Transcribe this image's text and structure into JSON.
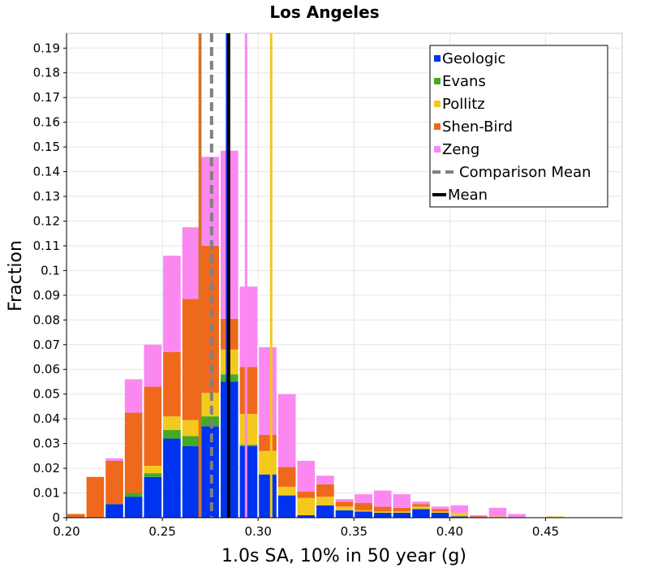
{
  "chart_data": {
    "type": "bar",
    "stacked": true,
    "title": "Los Angeles",
    "xlabel": "1.0s SA, 10% in 50 year (g)",
    "ylabel": "Fraction",
    "xlim": [
      0.2,
      0.49
    ],
    "ylim": [
      0,
      0.196
    ],
    "bin_width": 0.01,
    "grid": true,
    "legend_position": "top-right",
    "x_ticks": [
      "0.20",
      "0.25",
      "0.30",
      "0.35",
      "0.40",
      "0.45"
    ],
    "x_tick_values": [
      0.2,
      0.25,
      0.3,
      0.35,
      0.4,
      0.45
    ],
    "y_ticks": [
      "0",
      "0.01",
      "0.02",
      "0.03",
      "0.04",
      "0.05",
      "0.06",
      "0.07",
      "0.08",
      "0.09",
      "0.1",
      "0.11",
      "0.12",
      "0.13",
      "0.14",
      "0.15",
      "0.16",
      "0.17",
      "0.18",
      "0.19"
    ],
    "y_tick_values": [
      0,
      0.01,
      0.02,
      0.03,
      0.04,
      0.05,
      0.06,
      0.07,
      0.08,
      0.09,
      0.1,
      0.11,
      0.12,
      0.13,
      0.14,
      0.15,
      0.16,
      0.17,
      0.18,
      0.19
    ],
    "bin_starts": [
      0.2,
      0.21,
      0.22,
      0.23,
      0.24,
      0.25,
      0.26,
      0.27,
      0.28,
      0.29,
      0.3,
      0.31,
      0.32,
      0.33,
      0.34,
      0.35,
      0.36,
      0.37,
      0.38,
      0.39,
      0.4,
      0.41,
      0.42,
      0.43,
      0.44,
      0.45,
      0.46,
      0.47,
      0.48
    ],
    "series": [
      {
        "name": "Geologic",
        "color": "#0033ee",
        "values": [
          0,
          0,
          0.0055,
          0.0085,
          0.0165,
          0.032,
          0.029,
          0.037,
          0.055,
          0.029,
          0.0175,
          0.009,
          0.001,
          0.005,
          0.003,
          0.0025,
          0.002,
          0.002,
          0.0035,
          0.002,
          0.0005,
          0,
          0,
          0,
          0,
          0,
          0,
          0,
          0
        ]
      },
      {
        "name": "Evans",
        "color": "#44aa22",
        "values": [
          0,
          0,
          0,
          0.0015,
          0.0015,
          0.0035,
          0.004,
          0.004,
          0.003,
          0.0005,
          0,
          0,
          0,
          0,
          0,
          0,
          0,
          0,
          0,
          0,
          0,
          0,
          0,
          0,
          0,
          0,
          0,
          0,
          0
        ]
      },
      {
        "name": "Pollitz",
        "color": "#f2c91c",
        "values": [
          0,
          0,
          0,
          0,
          0.003,
          0.0055,
          0.0065,
          0.0095,
          0.01,
          0.0125,
          0.0095,
          0.0035,
          0.007,
          0.0035,
          0.0015,
          0.0005,
          0.0005,
          0.0005,
          0.001,
          0.0005,
          0.0015,
          0,
          0.0005,
          0,
          0,
          0.0005,
          0,
          0,
          0
        ]
      },
      {
        "name": "Shen-Bird",
        "color": "#f0681c",
        "values": [
          0.0015,
          0.0165,
          0.0175,
          0.0325,
          0.032,
          0.026,
          0.049,
          0.0595,
          0.0125,
          0.019,
          0.0065,
          0.008,
          0.0025,
          0.005,
          0.002,
          0.003,
          0.002,
          0.0015,
          0.001,
          0.001,
          0,
          0.0005,
          0,
          0,
          0,
          0,
          0,
          0,
          0
        ]
      },
      {
        "name": "Zeng",
        "color": "#fa88f0",
        "values": [
          0,
          0,
          0.001,
          0.0135,
          0.017,
          0.039,
          0.029,
          0.036,
          0.068,
          0.0325,
          0.0355,
          0.0295,
          0.0125,
          0.0035,
          0.001,
          0.0035,
          0.0065,
          0.0055,
          0.001,
          0.001,
          0.003,
          0.0005,
          0.0035,
          0.0015,
          0,
          0,
          0,
          0,
          0
        ]
      }
    ],
    "reference_lines": [
      {
        "series": "Geologic",
        "x": 0.2838,
        "color": "#0033ee"
      },
      {
        "series": "Evans",
        "x": 0.2698,
        "color": "#44aa22"
      },
      {
        "series": "Pollitz",
        "x": 0.3068,
        "color": "#f2c91c"
      },
      {
        "series": "Shen-Bird",
        "x": 0.2695,
        "color": "#f0681c"
      },
      {
        "series": "Zeng",
        "x": 0.2937,
        "color": "#fa88f0"
      },
      {
        "series": "Comparison Mean",
        "x": 0.2757,
        "color": "#808080",
        "style": "dashed"
      },
      {
        "series": "Mean",
        "x": 0.2846,
        "color": "#000000",
        "style": "solid"
      }
    ],
    "legend": [
      {
        "label": "Geologic",
        "kind": "box",
        "color": "#0033ee"
      },
      {
        "label": "Evans",
        "kind": "box",
        "color": "#44aa22"
      },
      {
        "label": "Pollitz",
        "kind": "box",
        "color": "#f2c91c"
      },
      {
        "label": "Shen-Bird",
        "kind": "box",
        "color": "#f0681c"
      },
      {
        "label": "Zeng",
        "kind": "box",
        "color": "#fa88f0"
      },
      {
        "label": "Comparison Mean",
        "kind": "dashed",
        "color": "#808080"
      },
      {
        "label": "Mean",
        "kind": "line",
        "color": "#000000"
      }
    ]
  }
}
